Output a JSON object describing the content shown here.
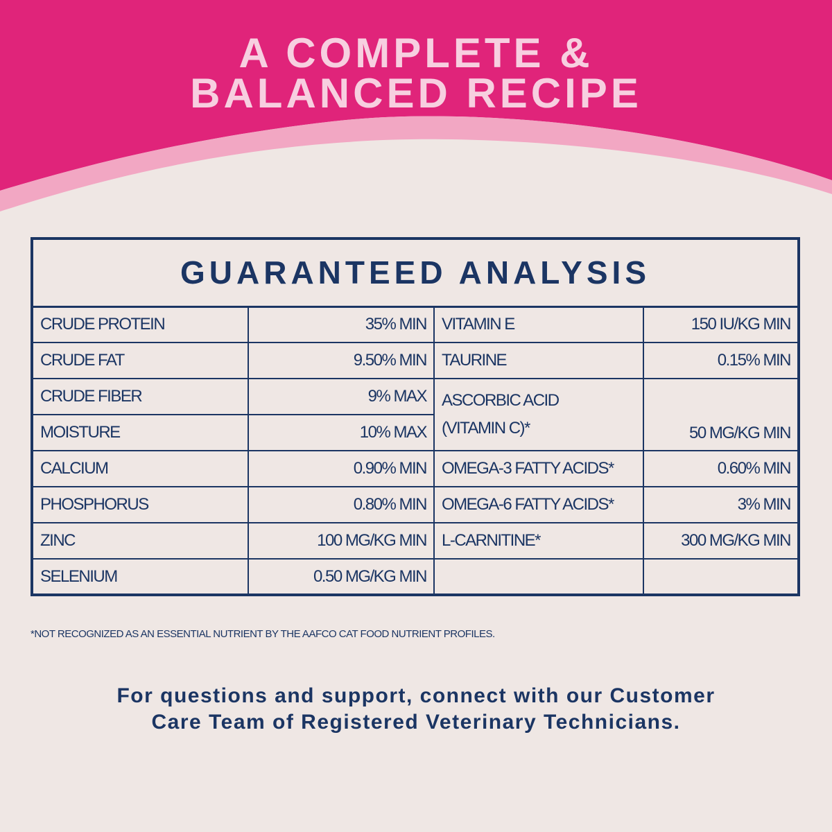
{
  "colors": {
    "pink": "#e0247a",
    "light_pink": "#f2a7c3",
    "background": "#efe7e4",
    "navy": "#1b3563",
    "title_text": "#f7cfe0"
  },
  "hero": {
    "line1": "A COMPLETE &",
    "line2": "BALANCED RECIPE"
  },
  "analysis": {
    "title": "GUARANTEED ANALYSIS",
    "left": [
      {
        "name": "CRUDE PROTEIN",
        "value": "35% MIN"
      },
      {
        "name": "CRUDE FAT",
        "value": "9.50% MIN"
      },
      {
        "name": "CRUDE FIBER",
        "value": "9% MAX"
      },
      {
        "name": "MOISTURE",
        "value": "10% MAX"
      },
      {
        "name": "CALCIUM",
        "value": "0.90% MIN"
      },
      {
        "name": "PHOSPHORUS",
        "value": "0.80% MIN"
      },
      {
        "name": "ZINC",
        "value": "100 MG/KG MIN"
      },
      {
        "name": "SELENIUM",
        "value": "0.50 MG/KG MIN"
      }
    ],
    "right": [
      {
        "name": "VITAMIN E",
        "value": "150 IU/KG MIN"
      },
      {
        "name": "TAURINE",
        "value": "0.15% MIN"
      },
      {
        "name_line1": "ASCORBIC ACID",
        "name_line2": "(VITAMIN C)*",
        "value": "50 MG/KG MIN"
      },
      {
        "name": "OMEGA-3 FATTY ACIDS*",
        "value": "0.60% MIN"
      },
      {
        "name": "OMEGA-6 FATTY ACIDS*",
        "value": "3% MIN"
      },
      {
        "name": "L-CARNITINE*",
        "value": "300 MG/KG MIN"
      }
    ],
    "footnote": "*NOT RECOGNIZED AS AN ESSENTIAL NUTRIENT BY THE AAFCO CAT FOOD NUTRIENT PROFILES."
  },
  "support": {
    "line1": "For questions and support, connect with our Customer",
    "line2": "Care Team of Registered Veterinary Technicians."
  }
}
